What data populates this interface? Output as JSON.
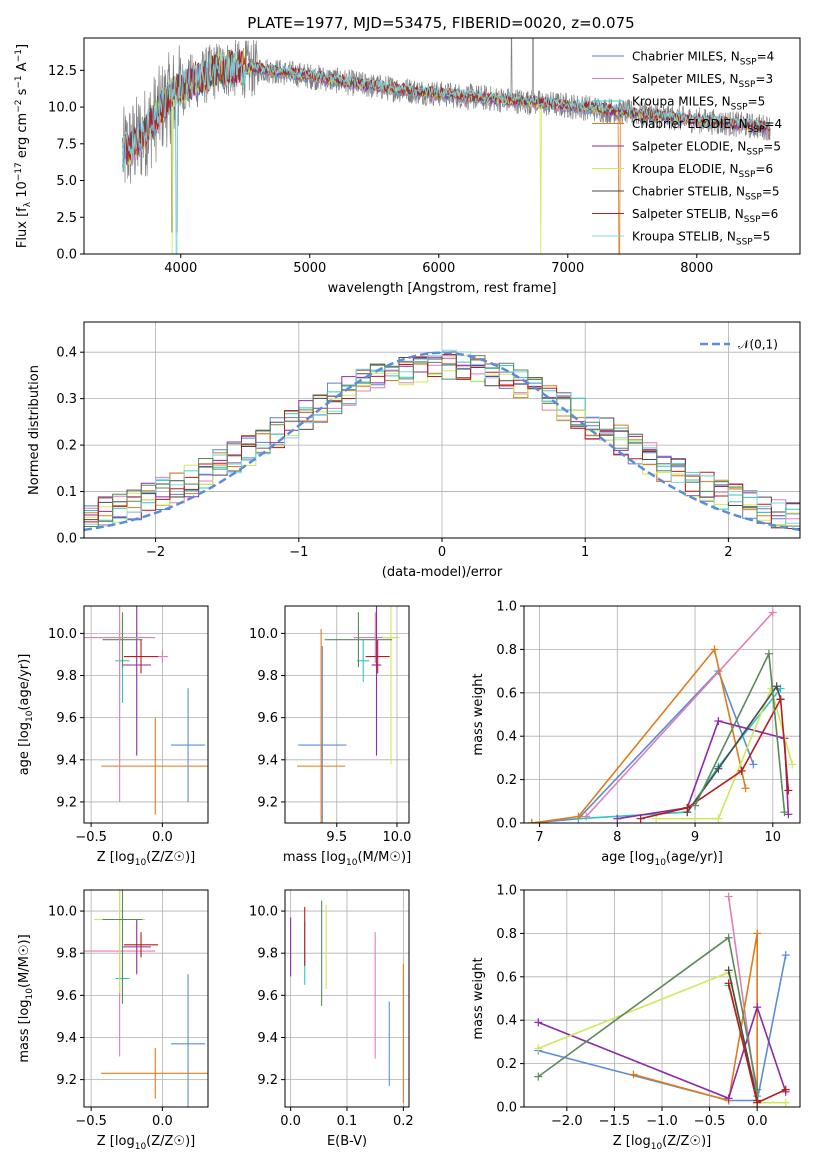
{
  "figure": {
    "title": "PLATE=1977, MJD=53475, FIBERID=0020, z=0.075"
  },
  "legend": [
    {
      "name": "Chabrier MILES, N_SSP=4",
      "color": "#5b7fce"
    },
    {
      "name": "Salpeter MILES, N_SSP=3",
      "color": "#e07fb5"
    },
    {
      "name": "Kroupa MILES, N_SSP=5",
      "color": "#2ec7c0"
    },
    {
      "name": "Chabrier ELODIE, N_SSP=4",
      "color": "#e07b1c"
    },
    {
      "name": "Salpeter ELODIE, N_SSP=5",
      "color": "#8e2aa6"
    },
    {
      "name": "Kroupa ELODIE, N_SSP=6",
      "color": "#cfe85a"
    },
    {
      "name": "Chabrier STELIB, N_SSP=5",
      "color": "#4a4a4a"
    },
    {
      "name": "Salpeter STELIB, N_SSP=6",
      "color": "#b81c1c"
    },
    {
      "name": "Kroupa STELIB, N_SSP=5",
      "color": "#7fd6e3"
    }
  ],
  "chart_data": [
    {
      "id": "spectrum",
      "type": "line",
      "title": "PLATE=1977, MJD=53475, FIBERID=0020, z=0.075",
      "xlabel": "wavelength [Angstrom, rest frame]",
      "ylabel": "Flux [f_λ 10^-17 erg cm^-2 s^-1 A^-1]",
      "xlim": [
        3250,
        8800
      ],
      "ylim": [
        0,
        14.7
      ],
      "xticks": [
        4000,
        5000,
        6000,
        7000,
        8000
      ],
      "yticks": [
        0.0,
        2.5,
        5.0,
        7.5,
        10.0,
        12.5
      ],
      "data_line_color": "#808080",
      "model_line_color": "#7fd6e3",
      "data_range": [
        3550,
        8570
      ],
      "model_anchor": [
        [
          3550,
          6.8
        ],
        [
          3700,
          8.0
        ],
        [
          3900,
          10.5
        ],
        [
          4000,
          11.3
        ],
        [
          4300,
          12.6
        ],
        [
          4600,
          12.6
        ],
        [
          5000,
          12.1
        ],
        [
          5500,
          11.4
        ],
        [
          6000,
          10.9
        ],
        [
          6500,
          10.5
        ],
        [
          7000,
          10.1
        ],
        [
          7500,
          9.6
        ],
        [
          8000,
          9.1
        ],
        [
          8570,
          8.6
        ]
      ]
    },
    {
      "id": "residuals",
      "type": "histogram",
      "xlabel": "(data-model)/error",
      "ylabel": "Normed distribution",
      "xlim": [
        -2.5,
        2.5
      ],
      "ylim": [
        0,
        0.465
      ],
      "xticks": [
        -2,
        -1,
        0,
        1,
        2
      ],
      "yticks": [
        0.0,
        0.1,
        0.2,
        0.3,
        0.4
      ],
      "bin_width": 0.1,
      "legend": "𝒩(0,1)",
      "gaussian_color": "#5b8dd6"
    },
    {
      "id": "age-vs-Z",
      "type": "errorbar",
      "xlabel": "Z [log10(Z/Z☉)]",
      "ylabel": "age [log10(age/yr)]",
      "xlim": [
        -0.55,
        0.32
      ],
      "ylim": [
        9.1,
        10.13
      ],
      "xticks": [
        -0.5,
        0.0
      ],
      "yticks": [
        9.2,
        9.4,
        9.6,
        9.8,
        10.0
      ],
      "points": [
        {
          "x": 0.18,
          "y": 9.47,
          "xerr": 0.12,
          "yerr": 0.27,
          "color": "#5b8dd6"
        },
        {
          "x": 0.0,
          "y": 9.89,
          "xerr": 0.04,
          "yerr": 0.03,
          "color": "#e07fb5"
        },
        {
          "x": -0.28,
          "y": 9.87,
          "xerr": 0.05,
          "yerr": 0.2,
          "color": "#2ec7c0"
        },
        {
          "x": -0.05,
          "y": 9.37,
          "xerr": 0.38,
          "yerr": 0.23,
          "color": "#e07b1c"
        },
        {
          "x": -0.18,
          "y": 9.85,
          "xerr": 0.1,
          "yerr": 0.43,
          "color": "#8e2aa6"
        },
        {
          "x": -0.3,
          "y": 9.98,
          "xerr": 0.18,
          "yerr": 0.6,
          "color": "#cfe85a"
        },
        {
          "x": -0.28,
          "y": 9.97,
          "xerr": 0.14,
          "yerr": 0.13,
          "color": "#5a8a5a"
        },
        {
          "x": -0.15,
          "y": 9.89,
          "xerr": 0.12,
          "yerr": 0.08,
          "color": "#b81c1c"
        },
        {
          "x": -0.3,
          "y": 9.98,
          "xerr": 0.25,
          "yerr": 0.78,
          "color": "#e07fb5"
        }
      ]
    },
    {
      "id": "age-vs-mass",
      "type": "errorbar",
      "xlabel": "mass [log10(M/M☉)]",
      "ylabel": "",
      "xlim": [
        9.07,
        10.1
      ],
      "ylim": [
        9.1,
        10.13
      ],
      "xticks": [
        9.5,
        10.0
      ],
      "yticks": [
        9.2,
        9.4,
        9.6,
        9.8,
        10.0
      ],
      "points": [
        {
          "x": 9.38,
          "y": 9.47,
          "xerr": 0.2,
          "yerr": 0.47,
          "color": "#5b8dd6"
        },
        {
          "x": 9.82,
          "y": 9.98,
          "xerr": 0.18,
          "yerr": 0.12,
          "color": "#e07fb5"
        },
        {
          "x": 9.72,
          "y": 9.87,
          "xerr": 0.05,
          "yerr": 0.1,
          "color": "#2ec7c0"
        },
        {
          "x": 9.37,
          "y": 9.37,
          "xerr": 0.2,
          "yerr": 0.65,
          "color": "#e07b1c"
        },
        {
          "x": 9.83,
          "y": 9.85,
          "xerr": 0.04,
          "yerr": 0.43,
          "color": "#8e2aa6"
        },
        {
          "x": 9.95,
          "y": 9.98,
          "xerr": 0.07,
          "yerr": 0.6,
          "color": "#cfe85a"
        },
        {
          "x": 9.68,
          "y": 9.97,
          "xerr": 0.28,
          "yerr": 0.13,
          "color": "#5a8a5a"
        },
        {
          "x": 9.84,
          "y": 9.89,
          "xerr": 0.1,
          "yerr": 0.08,
          "color": "#b81c1c"
        }
      ]
    },
    {
      "id": "massweight-vs-age",
      "type": "line",
      "xlabel": "age [log10(age/yr)]",
      "ylabel": "mass weight",
      "xlim": [
        6.8,
        10.35
      ],
      "ylim": [
        0,
        1.0
      ],
      "xticks": [
        7,
        8,
        9,
        10
      ],
      "yticks": [
        0.0,
        0.2,
        0.4,
        0.6,
        0.8,
        1.0
      ],
      "series": [
        {
          "color": "#5b8dd6",
          "x": [
            6.9,
            7.5,
            9.3,
            9.75
          ],
          "y": [
            0.0,
            0.02,
            0.7,
            0.27
          ]
        },
        {
          "color": "#e07fb5",
          "x": [
            7.6,
            10.0
          ],
          "y": [
            0.03,
            0.97
          ]
        },
        {
          "color": "#2ec7c0",
          "x": [
            7.5,
            8.9,
            9.3,
            10.1
          ],
          "y": [
            0.02,
            0.05,
            0.26,
            0.62
          ]
        },
        {
          "color": "#e07b1c",
          "x": [
            6.9,
            7.5,
            9.25,
            9.65
          ],
          "y": [
            0.0,
            0.03,
            0.8,
            0.16
          ]
        },
        {
          "color": "#8e2aa6",
          "x": [
            8.0,
            8.9,
            9.3,
            10.15,
            10.2
          ],
          "y": [
            0.02,
            0.07,
            0.47,
            0.39,
            0.04
          ]
        },
        {
          "color": "#cfe85a",
          "x": [
            8.5,
            9.3,
            9.98,
            10.25
          ],
          "y": [
            0.02,
            0.02,
            0.62,
            0.27
          ]
        },
        {
          "color": "#4a4a4a",
          "x": [
            8.9,
            9.3,
            10.05,
            10.1
          ],
          "y": [
            0.05,
            0.25,
            0.63,
            0.57
          ]
        },
        {
          "color": "#b81c1c",
          "x": [
            8.3,
            8.9,
            9.6,
            10.1,
            10.2
          ],
          "y": [
            0.02,
            0.07,
            0.24,
            0.57,
            0.15
          ]
        },
        {
          "color": "#5a8a5a",
          "x": [
            9.0,
            9.95,
            10.15
          ],
          "y": [
            0.08,
            0.78,
            0.05
          ]
        }
      ]
    },
    {
      "id": "mass-vs-Z",
      "type": "errorbar",
      "xlabel": "Z [log10(Z/Z☉)]",
      "ylabel": "mass [log10(M/M☉)]",
      "xlim": [
        -0.55,
        0.32
      ],
      "ylim": [
        9.07,
        10.1
      ],
      "xticks": [
        -0.5,
        0.0
      ],
      "yticks": [
        9.2,
        9.4,
        9.6,
        9.8,
        10.0
      ],
      "points": [
        {
          "x": 0.18,
          "y": 9.37,
          "xerr": 0.12,
          "yerr": 0.33,
          "color": "#5b8dd6"
        },
        {
          "x": -0.3,
          "y": 9.81,
          "xerr": 0.25,
          "yerr": 0.5,
          "color": "#e07fb5"
        },
        {
          "x": -0.28,
          "y": 9.68,
          "xerr": 0.05,
          "yerr": 0.08,
          "color": "#2ec7c0"
        },
        {
          "x": -0.05,
          "y": 9.23,
          "xerr": 0.38,
          "yerr": 0.12,
          "color": "#e07b1c"
        },
        {
          "x": -0.18,
          "y": 9.83,
          "xerr": 0.1,
          "yerr": 0.13,
          "color": "#8e2aa6"
        },
        {
          "x": -0.3,
          "y": 9.96,
          "xerr": 0.18,
          "yerr": 0.35,
          "color": "#cfe85a"
        },
        {
          "x": -0.28,
          "y": 9.96,
          "xerr": 0.14,
          "yerr": 0.4,
          "color": "#5a8a5a"
        },
        {
          "x": -0.15,
          "y": 9.84,
          "xerr": 0.12,
          "yerr": 0.06,
          "color": "#b81c1c"
        }
      ]
    },
    {
      "id": "mass-vs-EBV",
      "type": "errorbar",
      "xlabel": "E(B-V)",
      "ylabel": "",
      "xlim": [
        -0.01,
        0.21
      ],
      "ylim": [
        9.07,
        10.1
      ],
      "xticks": [
        0.0,
        0.1,
        0.2
      ],
      "yticks": [
        9.2,
        9.4,
        9.6,
        9.8,
        10.0
      ],
      "points": [
        {
          "x": 0.175,
          "y": 9.37,
          "yerr": 0.2,
          "color": "#5b8dd6"
        },
        {
          "x": 0.15,
          "y": 9.6,
          "yerr": 0.3,
          "color": "#e07fb5"
        },
        {
          "x": 0.025,
          "y": 9.8,
          "yerr": 0.15,
          "color": "#2ec7c0"
        },
        {
          "x": 0.2,
          "y": 9.42,
          "yerr": 0.33,
          "color": "#e07b1c"
        },
        {
          "x": 0.0,
          "y": 9.83,
          "yerr": 0.14,
          "color": "#8e2aa6"
        },
        {
          "x": 0.063,
          "y": 9.83,
          "yerr": 0.2,
          "color": "#cfe85a"
        },
        {
          "x": 0.055,
          "y": 9.8,
          "yerr": 0.25,
          "color": "#5a8a5a"
        },
        {
          "x": 0.025,
          "y": 9.88,
          "yerr": 0.14,
          "color": "#b81c1c"
        }
      ]
    },
    {
      "id": "massweight-vs-Z",
      "type": "line",
      "xlabel": "Z [log10(Z/Z☉)]",
      "ylabel": "mass weight",
      "xlim": [
        -2.45,
        0.45
      ],
      "ylim": [
        0,
        1.0
      ],
      "xticks": [
        -2.0,
        -1.5,
        -1.0,
        -0.5,
        0.0
      ],
      "yticks": [
        0.0,
        0.2,
        0.4,
        0.6,
        0.8,
        1.0
      ],
      "series": [
        {
          "color": "#5b8dd6",
          "x": [
            -2.3,
            -0.3,
            0.0,
            0.3
          ],
          "y": [
            0.26,
            0.03,
            0.03,
            0.7
          ]
        },
        {
          "color": "#e07fb5",
          "x": [
            -0.3,
            0.0
          ],
          "y": [
            0.97,
            0.03
          ]
        },
        {
          "color": "#2ec7c0",
          "x": [
            -0.3,
            0.0
          ],
          "y": [
            0.56,
            0.05
          ]
        },
        {
          "color": "#e07b1c",
          "x": [
            -1.3,
            -0.3,
            0.0,
            0.0
          ],
          "y": [
            0.15,
            0.03,
            0.8,
            0.0
          ]
        },
        {
          "color": "#8e2aa6",
          "x": [
            -2.3,
            -0.3,
            0.0,
            0.3
          ],
          "y": [
            0.39,
            0.04,
            0.46,
            0.07
          ]
        },
        {
          "color": "#cfe85a",
          "x": [
            -2.3,
            -0.3,
            0.0,
            0.3
          ],
          "y": [
            0.27,
            0.62,
            0.02,
            0.02
          ]
        },
        {
          "color": "#4a4a4a",
          "x": [
            -0.3,
            0.0
          ],
          "y": [
            0.63,
            0.03
          ]
        },
        {
          "color": "#b81c1c",
          "x": [
            -0.3,
            0.0,
            0.3
          ],
          "y": [
            0.57,
            0.02,
            0.08
          ]
        },
        {
          "color": "#5a8a5a",
          "x": [
            -2.3,
            -0.3,
            0.0
          ],
          "y": [
            0.14,
            0.78,
            0.08
          ]
        }
      ]
    }
  ]
}
